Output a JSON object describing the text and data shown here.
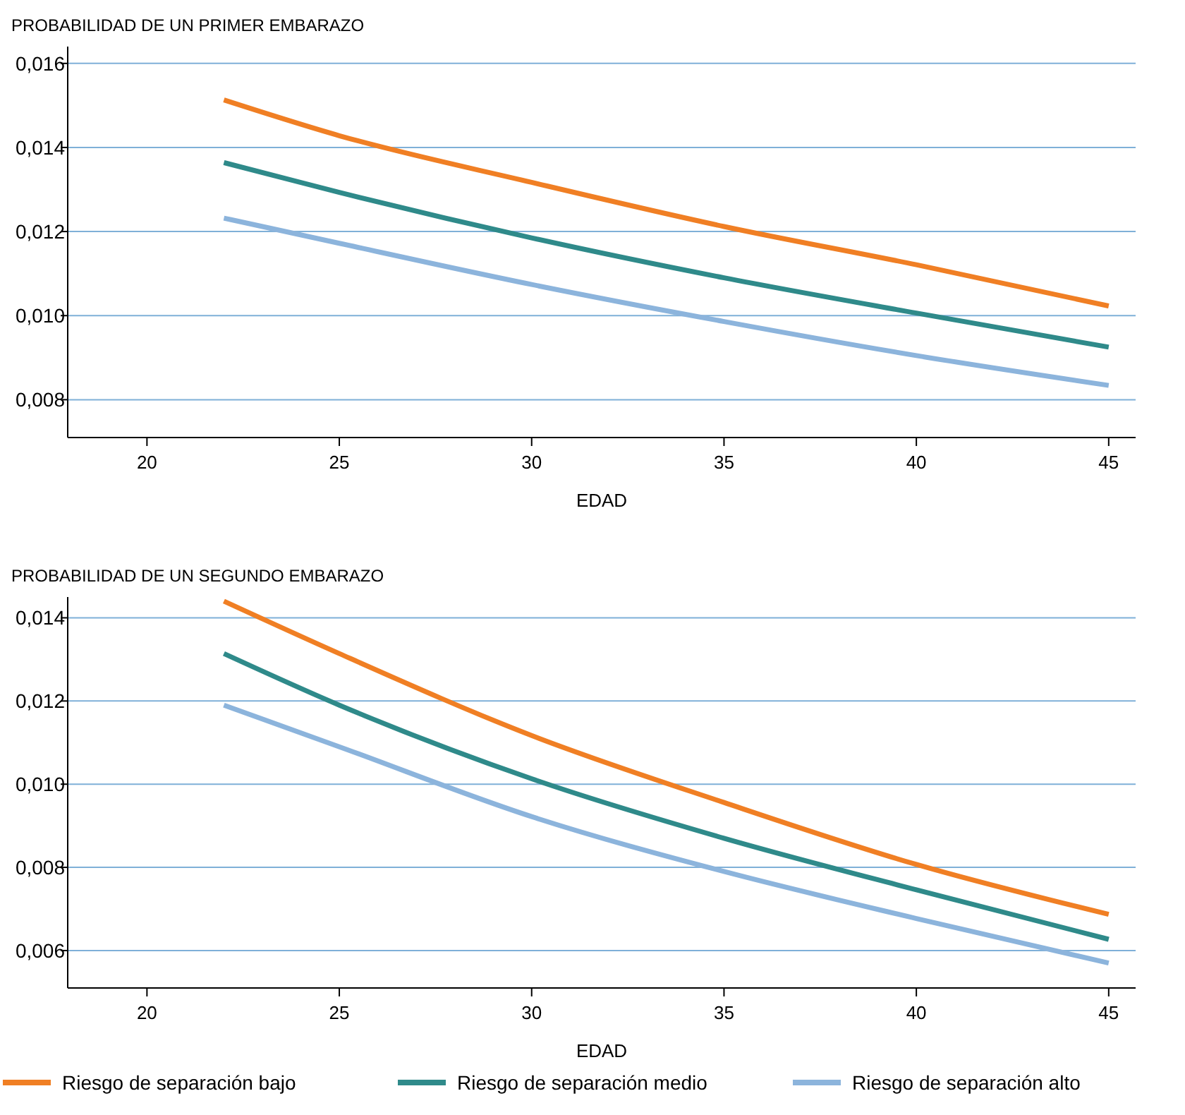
{
  "chart_data": [
    {
      "type": "line",
      "title": "PROBABILIDAD DE UN PRIMER EMBARAZO",
      "xlabel": "EDAD",
      "x": [
        22,
        25,
        30,
        35,
        40,
        45
      ],
      "xlim": [
        17.94,
        45.7
      ],
      "xticks": [
        20,
        25,
        30,
        35,
        40,
        45
      ],
      "ylim": [
        0.0071,
        0.0164
      ],
      "yticks": [
        {
          "value": 0.008,
          "label": "0,008"
        },
        {
          "value": 0.01,
          "label": "0,010"
        },
        {
          "value": 0.012,
          "label": "0,012"
        },
        {
          "value": 0.014,
          "label": "0,014"
        },
        {
          "value": 0.016,
          "label": "0,016"
        }
      ],
      "grid": "y",
      "legend": false,
      "line_style": "solid",
      "series": [
        {
          "color": "#f07f24",
          "values": [
            0.01513,
            0.01428,
            0.01317,
            0.01212,
            0.01121,
            0.01023
          ]
        },
        {
          "color": "#2f8a8a",
          "values": [
            0.01364,
            0.01293,
            0.01185,
            0.0109,
            0.01006,
            0.00925
          ]
        },
        {
          "color": "#8cb4dc",
          "values": [
            0.01232,
            0.01172,
            0.01074,
            0.00986,
            0.00905,
            0.00834
          ]
        }
      ]
    },
    {
      "type": "line",
      "title": "PROBABILIDAD DE UN SEGUNDO EMBARAZO",
      "xlabel": "EDAD",
      "x": [
        22,
        25,
        30,
        35,
        40,
        45
      ],
      "xlim": [
        17.94,
        45.7
      ],
      "xticks": [
        20,
        25,
        30,
        35,
        40,
        45
      ],
      "ylim": [
        0.0051,
        0.0145
      ],
      "yticks": [
        {
          "value": 0.006,
          "label": "0,006"
        },
        {
          "value": 0.008,
          "label": "0,008"
        },
        {
          "value": 0.01,
          "label": "0,010"
        },
        {
          "value": 0.012,
          "label": "0,012"
        },
        {
          "value": 0.014,
          "label": "0,014"
        }
      ],
      "grid": "y",
      "legend": "bottom",
      "line_style": "solid",
      "series": [
        {
          "name": "Riesgo de separación bajo",
          "color": "#f07f24",
          "values": [
            0.0144,
            0.01314,
            0.01117,
            0.00956,
            0.00807,
            0.00687
          ]
        },
        {
          "name": "Riesgo de separación medio",
          "color": "#2f8a8a",
          "values": [
            0.01314,
            0.0119,
            0.01013,
            0.0087,
            0.00746,
            0.00627
          ]
        },
        {
          "name": "Riesgo de separación alto",
          "color": "#8cb4dc",
          "values": [
            0.0119,
            0.0109,
            0.00922,
            0.0079,
            0.00677,
            0.0057
          ]
        }
      ]
    }
  ]
}
